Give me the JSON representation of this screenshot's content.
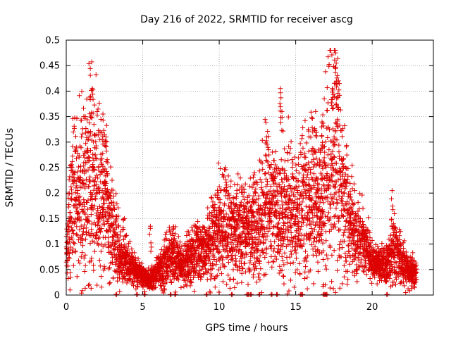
{
  "chart_data": {
    "type": "scatter",
    "title": "Day 216 of 2022, SRMTID for receiver ascg",
    "xlabel": "GPS time / hours",
    "ylabel": "SRMTID / TECUs",
    "xlim": [
      0,
      24
    ],
    "ylim": [
      0,
      0.5
    ],
    "xticks": [
      0,
      5,
      10,
      15,
      20
    ],
    "xtick_labels": [
      "0",
      "5",
      "10",
      "15",
      "20"
    ],
    "yticks": [
      0,
      0.05,
      0.1,
      0.15,
      0.2,
      0.25,
      0.3,
      0.35,
      0.4,
      0.45,
      0.5
    ],
    "ytick_labels": [
      "0",
      "0.05",
      "0.1",
      "0.15",
      "0.2",
      "0.25",
      "0.3",
      "0.35",
      "0.4",
      "0.45",
      "0.5"
    ],
    "grid": true,
    "marker": "+",
    "color": "#dd0000",
    "series": [
      {
        "name": "SRMTID",
        "envelope_hours": [
          0.0,
          0.5,
          1.0,
          1.5,
          2.0,
          2.5,
          3.0,
          3.5,
          4.0,
          4.5,
          5.0,
          5.5,
          6.0,
          6.5,
          7.0,
          7.5,
          8.0,
          8.5,
          9.0,
          9.5,
          10.0,
          10.5,
          11.0,
          11.5,
          12.0,
          12.5,
          13.0,
          13.5,
          14.0,
          14.5,
          15.0,
          15.5,
          16.0,
          16.5,
          17.0,
          17.5,
          18.0,
          18.5,
          19.0,
          19.5,
          20.0,
          20.5,
          21.0,
          21.5,
          22.0,
          22.5,
          22.9
        ],
        "envelope_center": [
          0.08,
          0.2,
          0.21,
          0.21,
          0.2,
          0.19,
          0.13,
          0.08,
          0.06,
          0.05,
          0.035,
          0.03,
          0.045,
          0.065,
          0.08,
          0.06,
          0.075,
          0.08,
          0.095,
          0.11,
          0.13,
          0.12,
          0.12,
          0.14,
          0.13,
          0.14,
          0.17,
          0.17,
          0.16,
          0.17,
          0.15,
          0.18,
          0.2,
          0.16,
          0.22,
          0.25,
          0.2,
          0.14,
          0.12,
          0.1,
          0.07,
          0.06,
          0.06,
          0.09,
          0.06,
          0.045,
          0.045
        ],
        "envelope_spread": [
          0.03,
          0.07,
          0.08,
          0.1,
          0.09,
          0.07,
          0.05,
          0.03,
          0.02,
          0.015,
          0.01,
          0.01,
          0.015,
          0.03,
          0.03,
          0.02,
          0.03,
          0.03,
          0.03,
          0.04,
          0.05,
          0.05,
          0.04,
          0.05,
          0.04,
          0.05,
          0.07,
          0.06,
          0.06,
          0.08,
          0.05,
          0.07,
          0.08,
          0.05,
          0.1,
          0.12,
          0.08,
          0.05,
          0.04,
          0.03,
          0.02,
          0.015,
          0.02,
          0.04,
          0.02,
          0.015,
          0.015
        ],
        "peaks": [
          [
            1.6,
            0.39
          ],
          [
            1.7,
            0.405
          ],
          [
            2.4,
            0.355
          ],
          [
            2.6,
            0.31
          ],
          [
            13.1,
            0.31
          ],
          [
            14.0,
            0.405
          ],
          [
            14.1,
            0.36
          ],
          [
            16.3,
            0.36
          ],
          [
            16.7,
            0.33
          ],
          [
            17.4,
            0.405
          ],
          [
            17.6,
            0.475
          ],
          [
            17.65,
            0.455
          ],
          [
            17.8,
            0.42
          ],
          [
            21.3,
            0.205
          ],
          [
            3.8,
            0.15
          ],
          [
            5.5,
            0.135
          ],
          [
            7.0,
            0.13
          ],
          [
            10.4,
            0.25
          ],
          [
            12.3,
            0.24
          ]
        ],
        "zero_hours": [
          3.25,
          4.6,
          5.1,
          6.8,
          7.1,
          9.15,
          10.8,
          11.8,
          11.9,
          12.05,
          12.6,
          13.4,
          13.75,
          15.3,
          15.4,
          16.8,
          16.9,
          17.0,
          20.95
        ]
      }
    ]
  }
}
